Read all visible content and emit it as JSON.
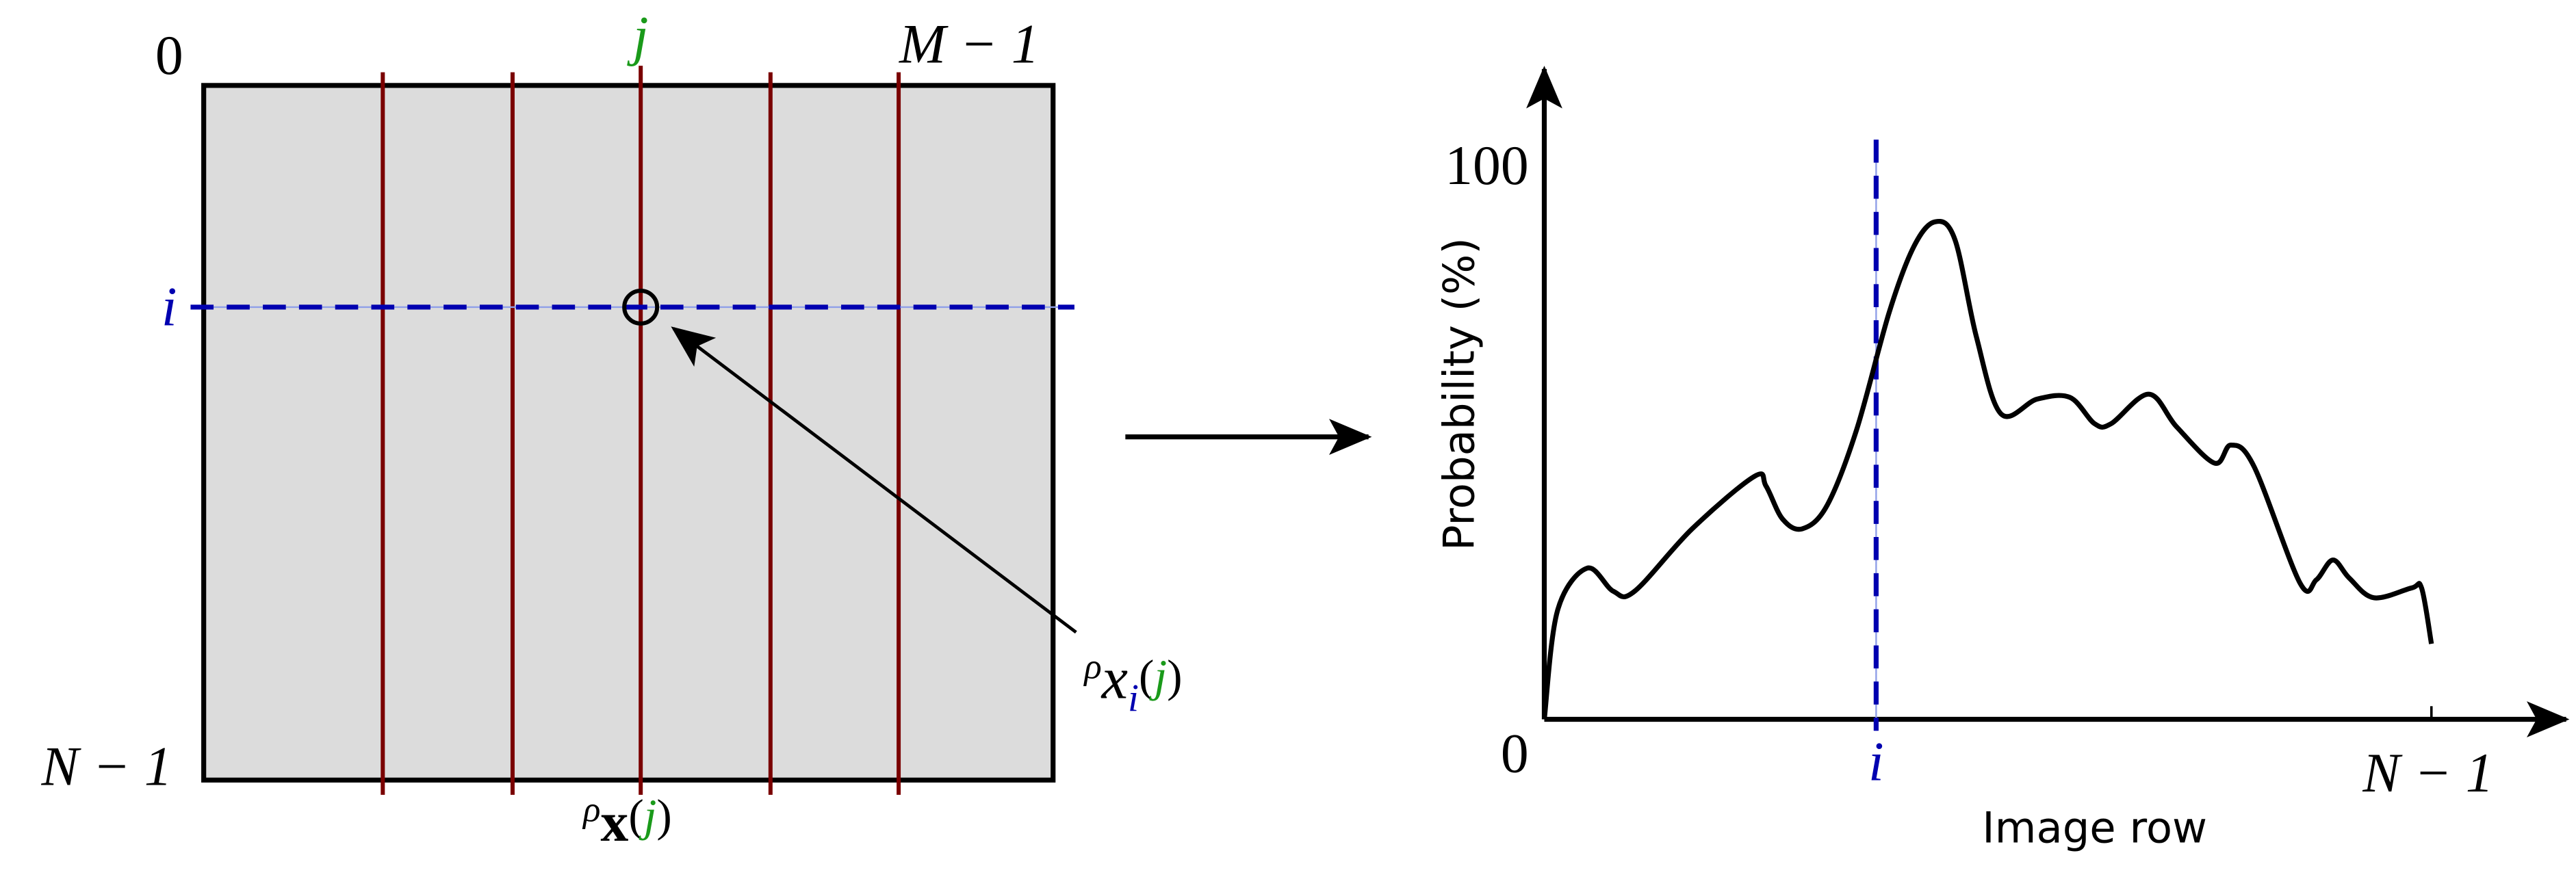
{
  "left_panel": {
    "corner_top_left": "0",
    "column_label": "j",
    "corner_top_right": "M − 1",
    "row_label": "i",
    "corner_bottom_left": "N − 1",
    "pixel_label": {
      "rho": "ρ",
      "var": "x",
      "index": "i",
      "open": "(",
      "arg": "j",
      "close": ")"
    },
    "column_label_bottom": {
      "rho": "ρ",
      "var": "x",
      "open": "(",
      "arg": "j",
      "close": ")"
    }
  },
  "right_panel": {
    "y_axis_label": "Probability (%)",
    "y_max_label": "100",
    "origin_label": "0",
    "x_marker_label": "i",
    "x_end_label": "N − 1",
    "x_axis_label": "Image row"
  }
}
